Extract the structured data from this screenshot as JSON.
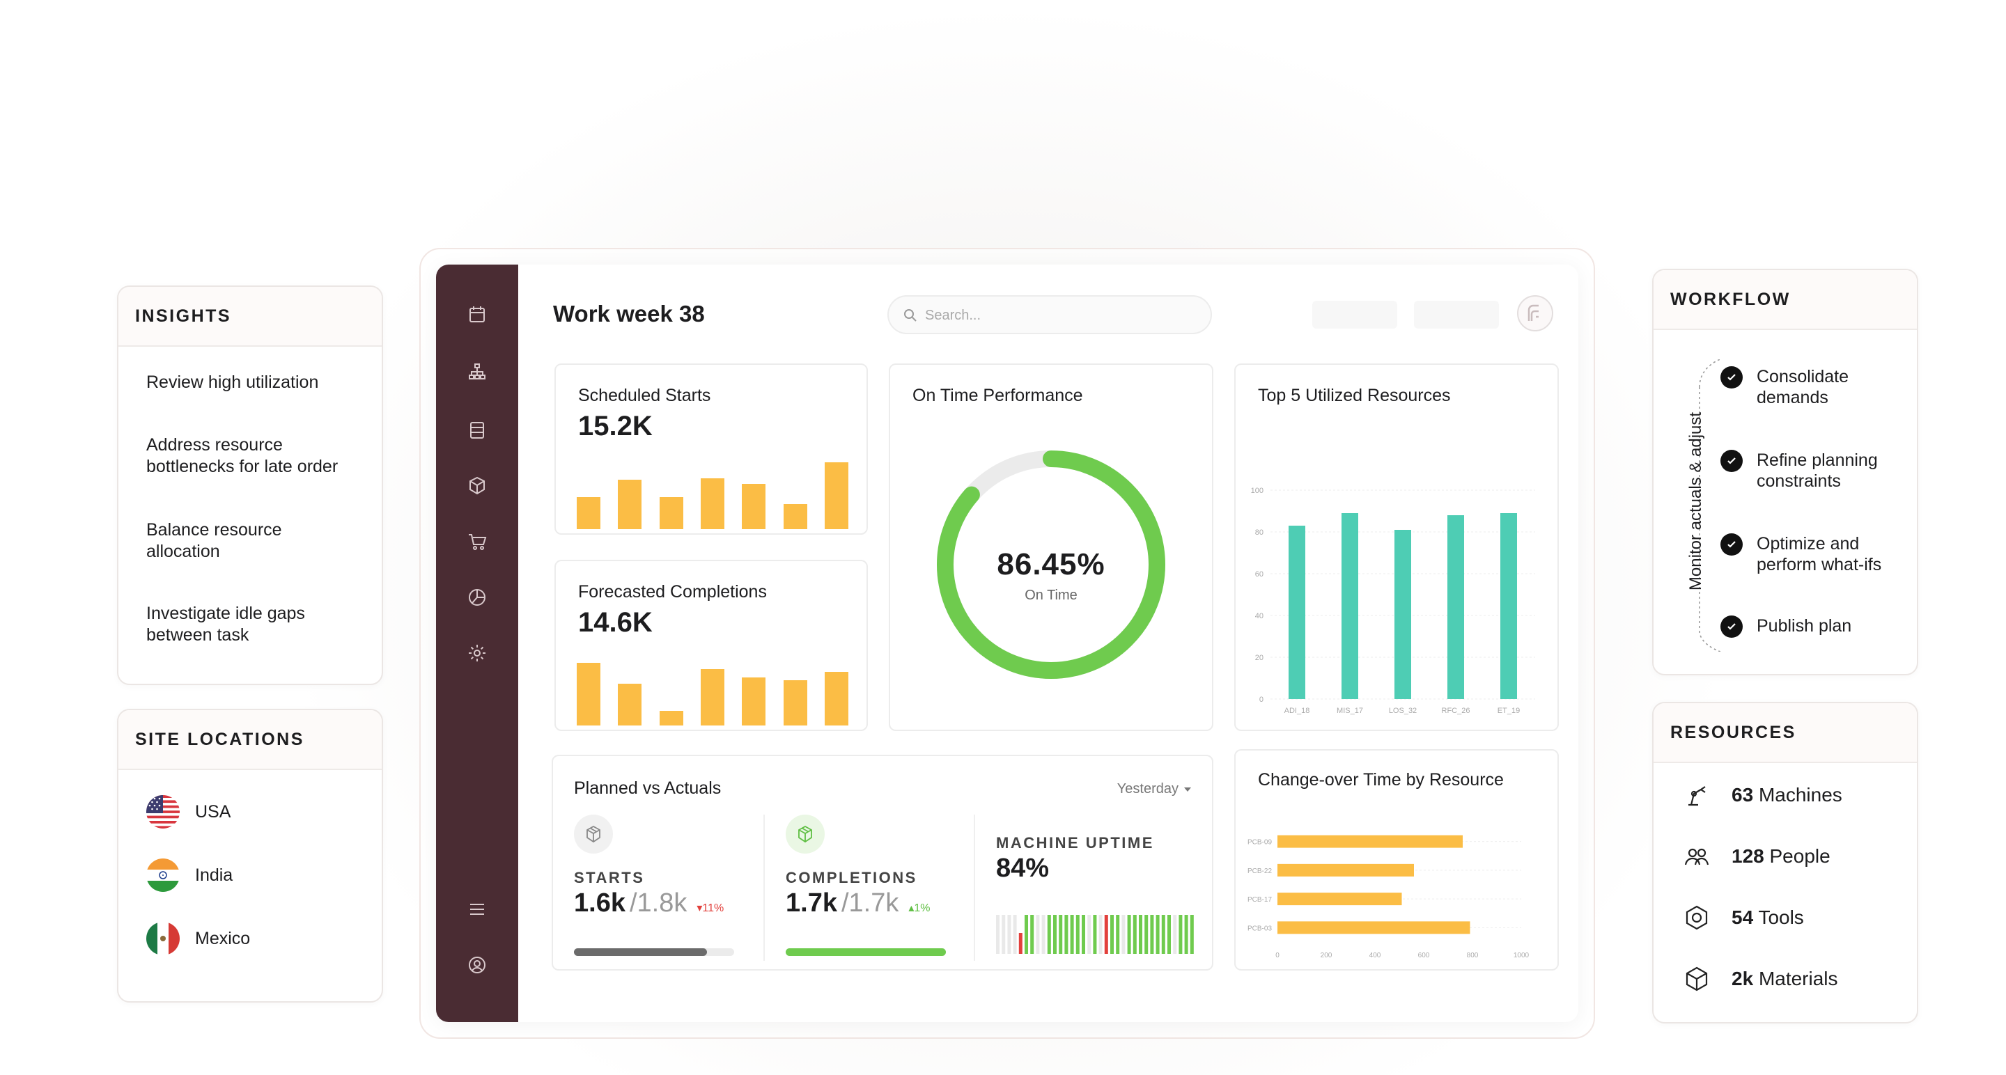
{
  "insights": {
    "title": "INSIGHTS",
    "items": [
      "Review high utilization",
      "Address resource bottlenecks for late order",
      "Balance resource allocation",
      "Investigate idle gaps between task"
    ]
  },
  "sites": {
    "title": "SITE LOCATIONS",
    "items": [
      {
        "name": "USA",
        "flag": "usa-flag-icon"
      },
      {
        "name": "India",
        "flag": "india-flag-icon"
      },
      {
        "name": "Mexico",
        "flag": "mexico-flag-icon"
      }
    ]
  },
  "header": {
    "title": "Work week 38",
    "search_placeholder": "Search..."
  },
  "sidebar": {
    "icons": [
      "calendar-icon",
      "hierarchy-icon",
      "database-icon",
      "cube-icon",
      "cart-icon",
      "pie-chart-icon",
      "gear-icon",
      "menu-icon",
      "user-circle-icon"
    ]
  },
  "scheduled": {
    "title": "Scheduled Starts",
    "value": "15.2K",
    "bars": [
      0.48,
      0.74,
      0.48,
      0.76,
      0.68,
      0.38,
      1.0
    ]
  },
  "forecasted": {
    "title": "Forecasted Completions",
    "value": "14.6K",
    "bars": [
      0.94,
      0.62,
      0.22,
      0.84,
      0.72,
      0.68,
      0.8
    ]
  },
  "ontime": {
    "title": "On Time Performance",
    "value": "86.45%",
    "label": "On Time",
    "fraction": 0.8645
  },
  "top5": {
    "title": "Top 5 Utilized Resources",
    "chart_data": {
      "type": "bar",
      "categories": [
        "ADI_18",
        "MIS_17",
        "LOS_32",
        "RFC_26",
        "ET_19"
      ],
      "values": [
        83,
        89,
        81,
        88,
        89
      ],
      "ylim": [
        0,
        100
      ],
      "yticks": [
        "0",
        "20",
        "40",
        "60",
        "80",
        "100"
      ],
      "color": "#4ecdb4"
    }
  },
  "planned": {
    "title": "Planned vs Actuals",
    "period": "Yesterday",
    "starts": {
      "label": "STARTS",
      "actual": "1.6k",
      "planned": "/1.8k",
      "delta": "11%",
      "progress": 0.83
    },
    "completions": {
      "label": "COMPLETIONS",
      "actual": "1.7k",
      "planned": "/1.7k",
      "delta": "1%",
      "progress": 1.0
    },
    "uptime": {
      "label": "MACHINE UPTIME",
      "value": "84%"
    }
  },
  "changeover": {
    "title": "Change-over Time by Resource",
    "chart_data": {
      "type": "bar",
      "orientation": "horizontal",
      "categories": [
        "PCB-09",
        "PCB-22",
        "PCB-17",
        "PCB-03"
      ],
      "values": [
        760,
        560,
        510,
        790
      ],
      "xlim": [
        0,
        1000
      ],
      "xticks": [
        "0",
        "200",
        "400",
        "600",
        "800",
        "1000"
      ],
      "color": "#fbbd45"
    }
  },
  "workflow": {
    "title": "WORKFLOW",
    "loop_label": "Monitor actuals & adjust",
    "steps": [
      "Consolidate demands",
      "Refine planning constraints",
      "Optimize and perform what-ifs",
      "Publish plan"
    ]
  },
  "resources": {
    "title": "RESOURCES",
    "items": [
      {
        "count": "63",
        "label": "Machines",
        "icon": "robot-arm-icon"
      },
      {
        "count": "128",
        "label": "People",
        "icon": "people-icon"
      },
      {
        "count": "54",
        "label": "Tools",
        "icon": "hex-nut-icon"
      },
      {
        "count": "2k",
        "label": "Materials",
        "icon": "box-icon"
      }
    ]
  },
  "colors": {
    "sidebar": "#4a2c33",
    "amber": "#fbbd45",
    "green": "#6fcb4e",
    "teal": "#4ecdb4",
    "red": "#e2403c"
  }
}
